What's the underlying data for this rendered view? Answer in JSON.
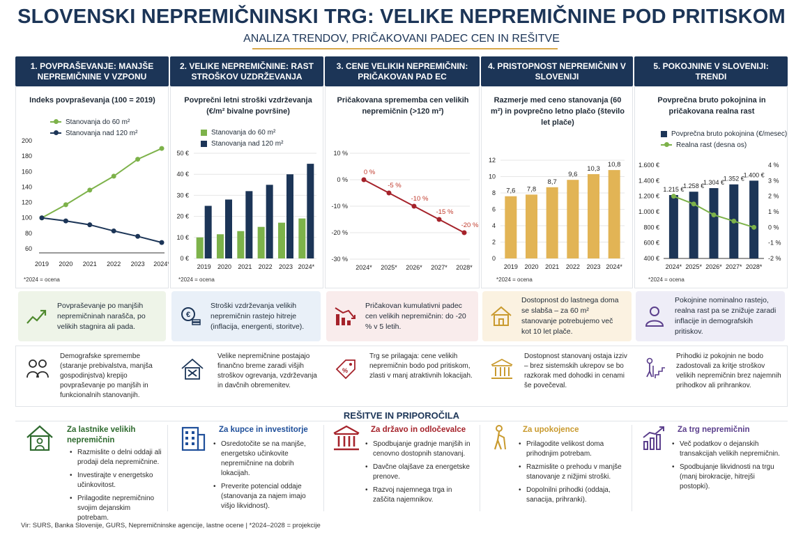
{
  "header": {
    "title": "SLOVENSKI NEPREMIČNINSKI TRG: VELIKE NEPREMIČNINE POD PRITISKOM",
    "subtitle": "ANALIZA TRENDOV, PRIČAKOVANI PADEC CEN IN REŠITVE"
  },
  "columns": [
    {
      "head": "1. POVPRAŠEVANJE: MANJŠE NEPREMIČNINE V VZPONU"
    },
    {
      "head": "2. VELIKE NEPREMIČNINE: RAST STROŠKOV UZDRŽEVANJA"
    },
    {
      "head": "3. CENE VELIKIH NEPREMIČNIN: PRIČAKOVAN PAD EC"
    },
    {
      "head": "4. PRISTOPNOST NEPREMIČNIN V SLOVENIJI"
    },
    {
      "head": "5. POKOJNINE V SLOVENIJI: TRENDI"
    }
  ],
  "chart_data": [
    {
      "type": "line",
      "title": "Indeks povpraševanja (100 = 2019)",
      "x": [
        "2019",
        "2020",
        "2021",
        "2022",
        "2023",
        "2024*"
      ],
      "series": [
        {
          "name": "Stanovanja do 60 m²",
          "color": "#7db24a",
          "values": [
            100,
            117,
            136,
            154,
            176,
            190
          ]
        },
        {
          "name": "Stanovanja nad 120 m²",
          "color": "#1c3557",
          "values": [
            100,
            96,
            91,
            83,
            76,
            68
          ]
        }
      ],
      "ylim": [
        60,
        200
      ],
      "yticks": [
        "60",
        "80",
        "100",
        "120",
        "140",
        "160",
        "180",
        "200"
      ],
      "note": "*2024 = ocena"
    },
    {
      "type": "bar",
      "title": "Povprečni letni stroški vzdrževanja (€/m² bivalne površine)",
      "categories": [
        "2019",
        "2020",
        "2021",
        "2022",
        "2023",
        "2024*"
      ],
      "series": [
        {
          "name": "Stanovanja do 60 m²",
          "color": "#7db24a",
          "values": [
            10,
            11.5,
            13,
            15,
            17,
            19
          ]
        },
        {
          "name": "Stanovanja nad 120 m²",
          "color": "#1c3557",
          "values": [
            25,
            28,
            32,
            35,
            40,
            45
          ]
        }
      ],
      "ylim": [
        0,
        50
      ],
      "yticks": [
        "0 €",
        "10 €",
        "20 €",
        "30 €",
        "40 €",
        "50 €"
      ],
      "note": "*2024 = ocena"
    },
    {
      "type": "line",
      "title": "Pričakovana sprememba cen velikih nepremičnin (>120 m²)",
      "x": [
        "2024*",
        "2025*",
        "2026*",
        "2027*",
        "2028*"
      ],
      "series": [
        {
          "color": "#a5222a",
          "values": [
            0,
            -5,
            -10,
            -15,
            -20
          ],
          "labels": [
            "0 %",
            "-5 %",
            "-10 %",
            "-15 %",
            "-20 %"
          ]
        }
      ],
      "ylim": [
        -30,
        10
      ],
      "yticks": [
        "-30 %",
        "-20 %",
        "-10 %",
        "0 %",
        "10 %"
      ]
    },
    {
      "type": "bar",
      "title": "Razmerje med ceno stanovanja (60 m²) in povprečno letno plačo (število let plače)",
      "categories": [
        "2019",
        "2020",
        "2021",
        "2022",
        "2023",
        "2024*"
      ],
      "series": [
        {
          "color": "#e2b455",
          "values": [
            7.6,
            7.8,
            8.7,
            9.6,
            10.3,
            10.8
          ],
          "labels": [
            "7,6",
            "7,8",
            "8,7",
            "9,6",
            "10,3",
            "10,8"
          ]
        }
      ],
      "ylim": [
        0,
        12
      ],
      "yticks": [
        "0",
        "2",
        "4",
        "6",
        "8",
        "10",
        "12"
      ],
      "note": "*2024 = ocena"
    },
    {
      "type": "bar",
      "title": "Povprečna bruto pokojnina in pričakovana realna rast",
      "categories": [
        "2024*",
        "2025*",
        "2026*",
        "2027*",
        "2028*"
      ],
      "series": [
        {
          "name": "Povprečna bruto pokojnina (€/mesec)",
          "color": "#1c3557",
          "values": [
            1215,
            1258,
            1304,
            1352,
            1400
          ],
          "labels": [
            "1.215 €",
            "1.258 €",
            "1.304 €",
            "1.352 €",
            "1.400 €"
          ]
        },
        {
          "name": "Realna rast (desna os)",
          "color": "#7db24a",
          "type": "line",
          "values": [
            2,
            1.5,
            0.8,
            0.4,
            0
          ]
        }
      ],
      "ylim": [
        400,
        1600
      ],
      "yticks": [
        "400 €",
        "600 €",
        "800 €",
        "1.000 €",
        "1.200 €",
        "1.400 €",
        "1.600 €"
      ],
      "y2lim": [
        -2,
        4
      ],
      "y2ticks": [
        "-2 %",
        "-1 %",
        "0 %",
        "1 %",
        "2 %",
        "3 %",
        "4 %"
      ],
      "note": "*2024 = ocena"
    }
  ],
  "key_boxes": [
    {
      "text": "Povpraševanje po manjših nepremičninah narašča, po velikih stagnira ali pada.",
      "bg": "#eef4e8"
    },
    {
      "text": "Stroški vzdrževanja velikih nepremičnin rastejo hitreje (inflacija, energenti, storitve).",
      "bg": "#e9f0f8"
    },
    {
      "text": "Pričakovan kumulativni padec cen velikih nepremičnin: do -20 % v 5 letih.",
      "bg": "#f9ecec"
    },
    {
      "text": "Dostopnost do lastnega doma se slabša – za 60 m² stanovanje potrebujemo več kot 10 let plače.",
      "bg": "#fbf2e1"
    },
    {
      "text": "Pokojnine nominalno rastejo, realna rast pa se znižuje zaradi inflacije in demografskih pritiskov.",
      "bg": "#eeedf7"
    }
  ],
  "descriptions": [
    "Demografske spremembe (staranje prebivalstva, manjša gospodinjstva) krepijo povpraševanje po manjših in funkcionalnih stanovanjih.",
    "Velike nepremičnine postajajo finančno breme zaradi višjih stroškov ogrevanja, vzdrževanja in davčnih obremenitev.",
    "Trg se prilagaja: cene velikih nepremičnin bodo pod pritiskom, zlasti v manj atraktivnih lokacijah.",
    "Dostopnost stanovanj ostaja izziv – brez sistemskih ukrepov se bo razkorak med dohodki in cenami še povečeval.",
    "Prihodki iz pokojnin ne bodo zadostovali za kritje stroškov velikih nepremičnin brez najemnih prihodkov ali prihrankov."
  ],
  "solutions": {
    "title": "REŠITVE IN PRIPOROČILA",
    "groups": [
      {
        "head": "Za lastnike velikih nepremičnin",
        "color": "#2e6a2e",
        "items": [
          "Razmislite o delni oddaji ali prodaji dela nepremičnine.",
          "Investirajte v energetsko učinkovitost.",
          "Prilagodite nepremičnino svojim dejanskim potrebam."
        ]
      },
      {
        "head": "Za kupce in investitorje",
        "color": "#1f4f9a",
        "items": [
          "Osredotočite se na manjše, energetsko učinkovite nepremičnine na dobrih lokacijah.",
          "Preverite potencial oddaje (stanovanja za najem imajo višjo likvidnost)."
        ]
      },
      {
        "head": "Za državo in odločevalce",
        "color": "#a5222a",
        "items": [
          "Spodbujanje gradnje manjših in cenovno dostopnih stanovanj.",
          "Davčne olajšave za energetske prenove.",
          "Razvoj najemnega trga in zaščita najemnikov."
        ]
      },
      {
        "head": "Za upokojence",
        "color": "#c99a2e",
        "items": [
          "Prilagodite velikost doma prihodnjim potrebam.",
          "Razmislite o prehodu v manjše stanovanje z nižjimi stroški.",
          "Dopolnilni prihodki (oddaja, sanacija, prihranki)."
        ]
      },
      {
        "head": "Za trg nepremičnin",
        "color": "#5b3f8c",
        "items": [
          "Več podatkov o dejanskih transakcijah velikih nepremičnin.",
          "Spodbujanje likvidnosti na trgu (manj birokracije, hitrejši postopki)."
        ]
      }
    ]
  },
  "footer": "Vir: SURS, Banka Slovenije, GURS, Nepremičninske agencije, lastne ocene   |   *2024–2028 = projekcije"
}
